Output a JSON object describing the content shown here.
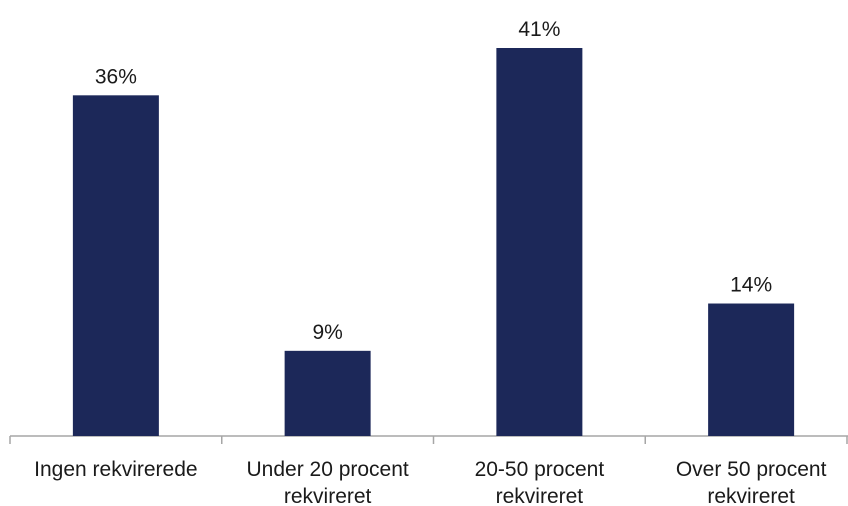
{
  "chart_data": {
    "type": "bar",
    "categories": [
      [
        "Ingen rekvirerede"
      ],
      [
        "Under 20 procent",
        "rekvireret"
      ],
      [
        "20-50 procent",
        "rekvireret"
      ],
      [
        "Over 50 procent",
        "rekvireret"
      ]
    ],
    "values": [
      36,
      9,
      41,
      14
    ],
    "data_labels": [
      "36%",
      "9%",
      "41%",
      "14%"
    ],
    "ylim": [
      0,
      45
    ],
    "grid": false,
    "legend": "none",
    "bar_color": "#1c2859",
    "axis_color": "#a6a6a6"
  }
}
